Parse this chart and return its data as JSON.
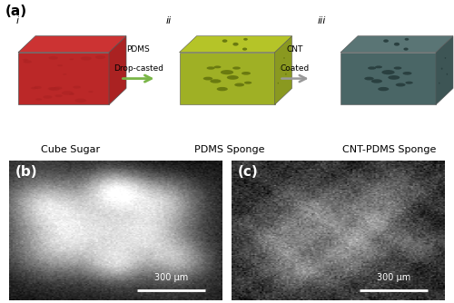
{
  "fig_width": 5.0,
  "fig_height": 3.34,
  "dpi": 100,
  "bg_color": "#ffffff",
  "panel_a_label": "(a)",
  "panel_b_label": "(b)",
  "panel_c_label": "(c)",
  "label_fontsize": 11,
  "label_fontweight": "bold",
  "roman_i": "i",
  "roman_ii": "ii",
  "roman_iii": "iii",
  "caption_cube": "Cube Sugar",
  "caption_pdms": "PDMS Sponge",
  "caption_cnt": "CNT-PDMS Sponge",
  "arrow1_text_line1": "PDMS",
  "arrow1_text_line2": "Drop-casted",
  "arrow2_text_line1": "CNT",
  "arrow2_text_line2": "Coated",
  "cube_sugar_color_top": "#cc3333",
  "cube_sugar_color_side": "#aa2222",
  "cube_sugar_color_front": "#bb2828",
  "pdms_color_top": "#b5c428",
  "pdms_color_side": "#8a9920",
  "pdms_color_front": "#9fb025",
  "pdms_hole_color": "#6a7a10",
  "cnt_color_top": "#5a7575",
  "cnt_color_side": "#3d5555",
  "cnt_color_front": "#4a6666",
  "cnt_hole_color": "#2a4040",
  "arrow_color": "#999999",
  "arrow_green_color": "#7ab648",
  "scalebar_color": "#ffffff",
  "scalebar_text": "300 μm",
  "scalebar_fontsize": 7,
  "caption_fontsize": 8,
  "roman_fontsize": 8,
  "roman_fontstyle": "italic"
}
